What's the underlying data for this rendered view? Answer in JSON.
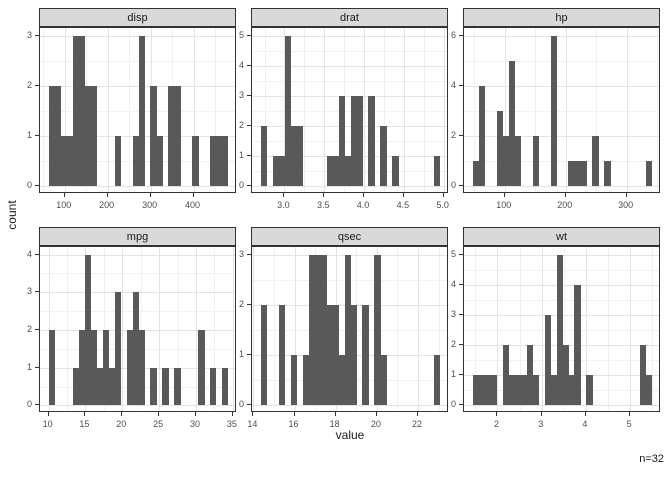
{
  "axis": {
    "x_title": "value",
    "y_title": "count"
  },
  "annotation": "n=32",
  "colors": {
    "bar": "#595959",
    "strip_bg": "#d9d9d9",
    "panel_border": "#333333",
    "grid_major": "#e3e3e3",
    "grid_minor": "#f1f1f1",
    "tick_text": "#4d4d4d",
    "title_text": "#1a1a1a"
  },
  "chart_data": [
    {
      "type": "bar",
      "subtype": "histogram",
      "title": "disp",
      "bin_start": 63.3,
      "bin_width": 13.9,
      "counts": [
        2,
        2,
        1,
        1,
        3,
        3,
        2,
        2,
        0,
        0,
        0,
        1,
        0,
        0,
        1,
        3,
        0,
        2,
        1,
        0,
        2,
        2,
        0,
        0,
        1,
        0,
        0,
        1,
        1,
        1
      ],
      "n": 32,
      "y_max": 3,
      "x_ticks": [
        {
          "v": 100,
          "label": "100"
        },
        {
          "v": 200,
          "label": "200"
        },
        {
          "v": 300,
          "label": "300"
        },
        {
          "v": 400,
          "label": "400"
        }
      ],
      "y_ticks": [
        {
          "v": 0,
          "label": "0"
        },
        {
          "v": 1,
          "label": "1"
        },
        {
          "v": 2,
          "label": "2"
        },
        {
          "v": 3,
          "label": "3"
        }
      ]
    },
    {
      "type": "bar",
      "subtype": "histogram",
      "title": "drat",
      "bin_start": 2.705,
      "bin_width": 0.075,
      "counts": [
        2,
        0,
        1,
        1,
        5,
        2,
        2,
        0,
        0,
        0,
        0,
        1,
        1,
        3,
        1,
        3,
        3,
        0,
        3,
        0,
        2,
        0,
        1,
        0,
        0,
        0,
        0,
        0,
        0,
        1
      ],
      "n": 32,
      "y_max": 5,
      "x_ticks": [
        {
          "v": 3.0,
          "label": "3.0"
        },
        {
          "v": 3.5,
          "label": "3.5"
        },
        {
          "v": 4.0,
          "label": "4.0"
        },
        {
          "v": 4.5,
          "label": "4.5"
        },
        {
          "v": 5.0,
          "label": "5.0"
        }
      ],
      "y_ticks": [
        {
          "v": 0,
          "label": "0"
        },
        {
          "v": 1,
          "label": "1"
        },
        {
          "v": 2,
          "label": "2"
        },
        {
          "v": 3,
          "label": "3"
        },
        {
          "v": 4,
          "label": "4"
        },
        {
          "v": 5,
          "label": "5"
        }
      ]
    },
    {
      "type": "bar",
      "subtype": "histogram",
      "title": "hp",
      "bin_start": 47.7,
      "bin_width": 9.8,
      "counts": [
        1,
        4,
        0,
        0,
        3,
        2,
        5,
        2,
        0,
        0,
        2,
        0,
        0,
        6,
        0,
        0,
        1,
        1,
        1,
        0,
        2,
        0,
        1,
        0,
        0,
        0,
        0,
        0,
        0,
        1
      ],
      "n": 32,
      "y_max": 6,
      "x_ticks": [
        {
          "v": 100,
          "label": "100"
        },
        {
          "v": 200,
          "label": "200"
        },
        {
          "v": 300,
          "label": "300"
        }
      ],
      "y_ticks": [
        {
          "v": 0,
          "label": "0"
        },
        {
          "v": 2,
          "label": "2"
        },
        {
          "v": 4,
          "label": "4"
        },
        {
          "v": 6,
          "label": "6"
        }
      ]
    },
    {
      "type": "bar",
      "subtype": "histogram",
      "title": "mpg",
      "bin_start": 10.05,
      "bin_width": 0.81,
      "counts": [
        2,
        0,
        0,
        0,
        1,
        2,
        4,
        2,
        1,
        2,
        1,
        3,
        0,
        2,
        3,
        2,
        0,
        1,
        0,
        1,
        0,
        1,
        0,
        0,
        0,
        2,
        0,
        1,
        0,
        1
      ],
      "n": 32,
      "y_max": 4,
      "x_ticks": [
        {
          "v": 10,
          "label": "10"
        },
        {
          "v": 15,
          "label": "15"
        },
        {
          "v": 20,
          "label": "20"
        },
        {
          "v": 25,
          "label": "25"
        },
        {
          "v": 30,
          "label": "30"
        },
        {
          "v": 35,
          "label": "35"
        }
      ],
      "y_ticks": [
        {
          "v": 0,
          "label": "0"
        },
        {
          "v": 1,
          "label": "1"
        },
        {
          "v": 2,
          "label": "2"
        },
        {
          "v": 3,
          "label": "3"
        },
        {
          "v": 4,
          "label": "4"
        }
      ]
    },
    {
      "type": "bar",
      "subtype": "histogram",
      "title": "qsec",
      "bin_start": 14.37,
      "bin_width": 0.29,
      "counts": [
        2,
        0,
        0,
        2,
        0,
        1,
        0,
        1,
        3,
        3,
        3,
        2,
        2,
        1,
        3,
        2,
        0,
        2,
        0,
        3,
        1,
        0,
        0,
        0,
        0,
        0,
        0,
        0,
        0,
        1
      ],
      "n": 32,
      "y_max": 3,
      "x_ticks": [
        {
          "v": 14,
          "label": "14"
        },
        {
          "v": 16,
          "label": "16"
        },
        {
          "v": 18,
          "label": "18"
        },
        {
          "v": 20,
          "label": "20"
        },
        {
          "v": 22,
          "label": "22"
        }
      ],
      "y_ticks": [
        {
          "v": 0,
          "label": "0"
        },
        {
          "v": 1,
          "label": "1"
        },
        {
          "v": 2,
          "label": "2"
        },
        {
          "v": 3,
          "label": "3"
        }
      ]
    },
    {
      "type": "bar",
      "subtype": "histogram",
      "title": "wt",
      "bin_start": 1.445,
      "bin_width": 0.135,
      "counts": [
        1,
        1,
        1,
        1,
        0,
        2,
        1,
        1,
        1,
        2,
        1,
        0,
        3,
        1,
        5,
        2,
        1,
        4,
        0,
        1,
        0,
        0,
        0,
        0,
        0,
        0,
        0,
        0,
        2,
        1
      ],
      "n": 32,
      "y_max": 5,
      "x_ticks": [
        {
          "v": 2,
          "label": "2"
        },
        {
          "v": 3,
          "label": "3"
        },
        {
          "v": 4,
          "label": "4"
        },
        {
          "v": 5,
          "label": "5"
        }
      ],
      "y_ticks": [
        {
          "v": 0,
          "label": "0"
        },
        {
          "v": 1,
          "label": "1"
        },
        {
          "v": 2,
          "label": "2"
        },
        {
          "v": 3,
          "label": "3"
        },
        {
          "v": 4,
          "label": "4"
        },
        {
          "v": 5,
          "label": "5"
        }
      ]
    }
  ]
}
